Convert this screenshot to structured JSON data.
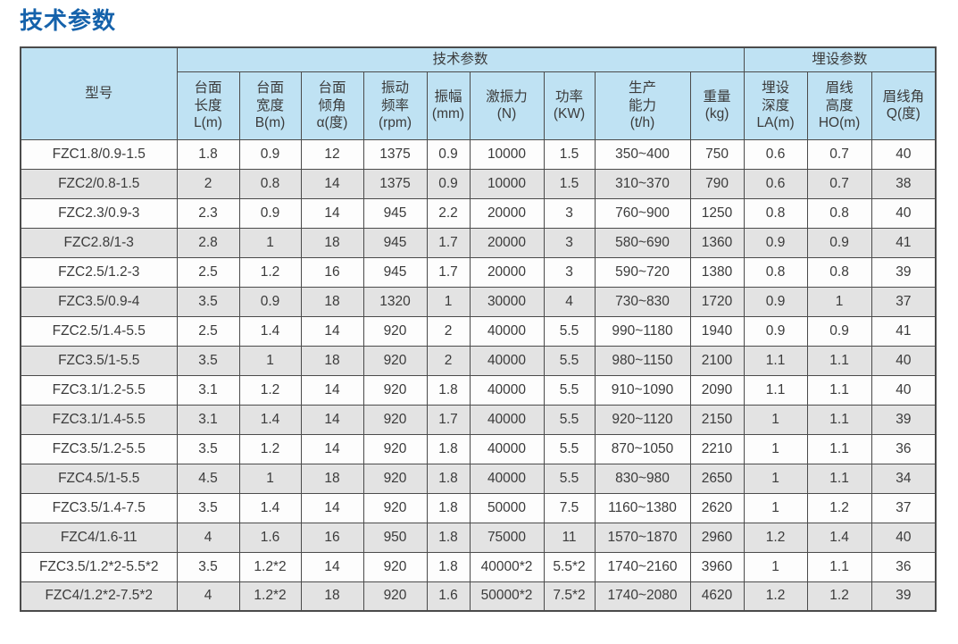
{
  "page": {
    "title": "技术参数"
  },
  "table": {
    "group_headers": {
      "model": "型号",
      "tech": "技术参数",
      "burial": "埋设参数"
    },
    "columns": [
      "台面\n长度\nL(m)",
      "台面\n宽度\nB(m)",
      "台面\n倾角\nα(度)",
      "振动\n频率\n(rpm)",
      "振幅\n(mm)",
      "激振力\n(N)",
      "功率\n(KW)",
      "生产\n能力\n(t/h)",
      "重量\n(kg)",
      "埋设\n深度\nLA(m)",
      "眉线\n高度\nHO(m)",
      "眉线角\nQ(度)"
    ],
    "rows": [
      [
        "FZC1.8/0.9-1.5",
        "1.8",
        "0.9",
        "12",
        "1375",
        "0.9",
        "10000",
        "1.5",
        "350~400",
        "750",
        "0.6",
        "0.7",
        "40"
      ],
      [
        "FZC2/0.8-1.5",
        "2",
        "0.8",
        "14",
        "1375",
        "0.9",
        "10000",
        "1.5",
        "310~370",
        "790",
        "0.6",
        "0.7",
        "38"
      ],
      [
        "FZC2.3/0.9-3",
        "2.3",
        "0.9",
        "14",
        "945",
        "2.2",
        "20000",
        "3",
        "760~900",
        "1250",
        "0.8",
        "0.8",
        "40"
      ],
      [
        "FZC2.8/1-3",
        "2.8",
        "1",
        "18",
        "945",
        "1.7",
        "20000",
        "3",
        "580~690",
        "1360",
        "0.9",
        "0.9",
        "41"
      ],
      [
        "FZC2.5/1.2-3",
        "2.5",
        "1.2",
        "16",
        "945",
        "1.7",
        "20000",
        "3",
        "590~720",
        "1380",
        "0.8",
        "0.8",
        "39"
      ],
      [
        "FZC3.5/0.9-4",
        "3.5",
        "0.9",
        "18",
        "1320",
        "1",
        "30000",
        "4",
        "730~830",
        "1720",
        "0.9",
        "1",
        "37"
      ],
      [
        "FZC2.5/1.4-5.5",
        "2.5",
        "1.4",
        "14",
        "920",
        "2",
        "40000",
        "5.5",
        "990~1180",
        "1940",
        "0.9",
        "0.9",
        "41"
      ],
      [
        "FZC3.5/1-5.5",
        "3.5",
        "1",
        "18",
        "920",
        "2",
        "40000",
        "5.5",
        "980~1150",
        "2100",
        "1.1",
        "1.1",
        "40"
      ],
      [
        "FZC3.1/1.2-5.5",
        "3.1",
        "1.2",
        "14",
        "920",
        "1.8",
        "40000",
        "5.5",
        "910~1090",
        "2090",
        "1.1",
        "1.1",
        "40"
      ],
      [
        "FZC3.1/1.4-5.5",
        "3.1",
        "1.4",
        "14",
        "920",
        "1.7",
        "40000",
        "5.5",
        "920~1120",
        "2150",
        "1",
        "1.1",
        "39"
      ],
      [
        "FZC3.5/1.2-5.5",
        "3.5",
        "1.2",
        "14",
        "920",
        "1.8",
        "40000",
        "5.5",
        "870~1050",
        "2210",
        "1",
        "1.1",
        "36"
      ],
      [
        "FZC4.5/1-5.5",
        "4.5",
        "1",
        "18",
        "920",
        "1.8",
        "40000",
        "5.5",
        "830~980",
        "2650",
        "1",
        "1.1",
        "34"
      ],
      [
        "FZC3.5/1.4-7.5",
        "3.5",
        "1.4",
        "14",
        "920",
        "1.8",
        "50000",
        "7.5",
        "1160~1380",
        "2620",
        "1",
        "1.2",
        "37"
      ],
      [
        "FZC4/1.6-11",
        "4",
        "1.6",
        "16",
        "950",
        "1.8",
        "75000",
        "11",
        "1570~1870",
        "2960",
        "1.2",
        "1.4",
        "40"
      ],
      [
        "FZC3.5/1.2*2-5.5*2",
        "3.5",
        "1.2*2",
        "14",
        "920",
        "1.8",
        "40000*2",
        "5.5*2",
        "1740~2160",
        "3960",
        "1",
        "1.1",
        "36"
      ],
      [
        "FZC4/1.2*2-7.5*2",
        "4",
        "1.2*2",
        "18",
        "920",
        "1.6",
        "50000*2",
        "7.5*2",
        "1740~2080",
        "4620",
        "1.2",
        "1.2",
        "39"
      ]
    ]
  },
  "colors": {
    "accent_blue": "#1562ab",
    "header_bg": "#bfe2f3",
    "row_alt_bg": "#e3e3e3",
    "grid_line": "#4b4b4b"
  }
}
